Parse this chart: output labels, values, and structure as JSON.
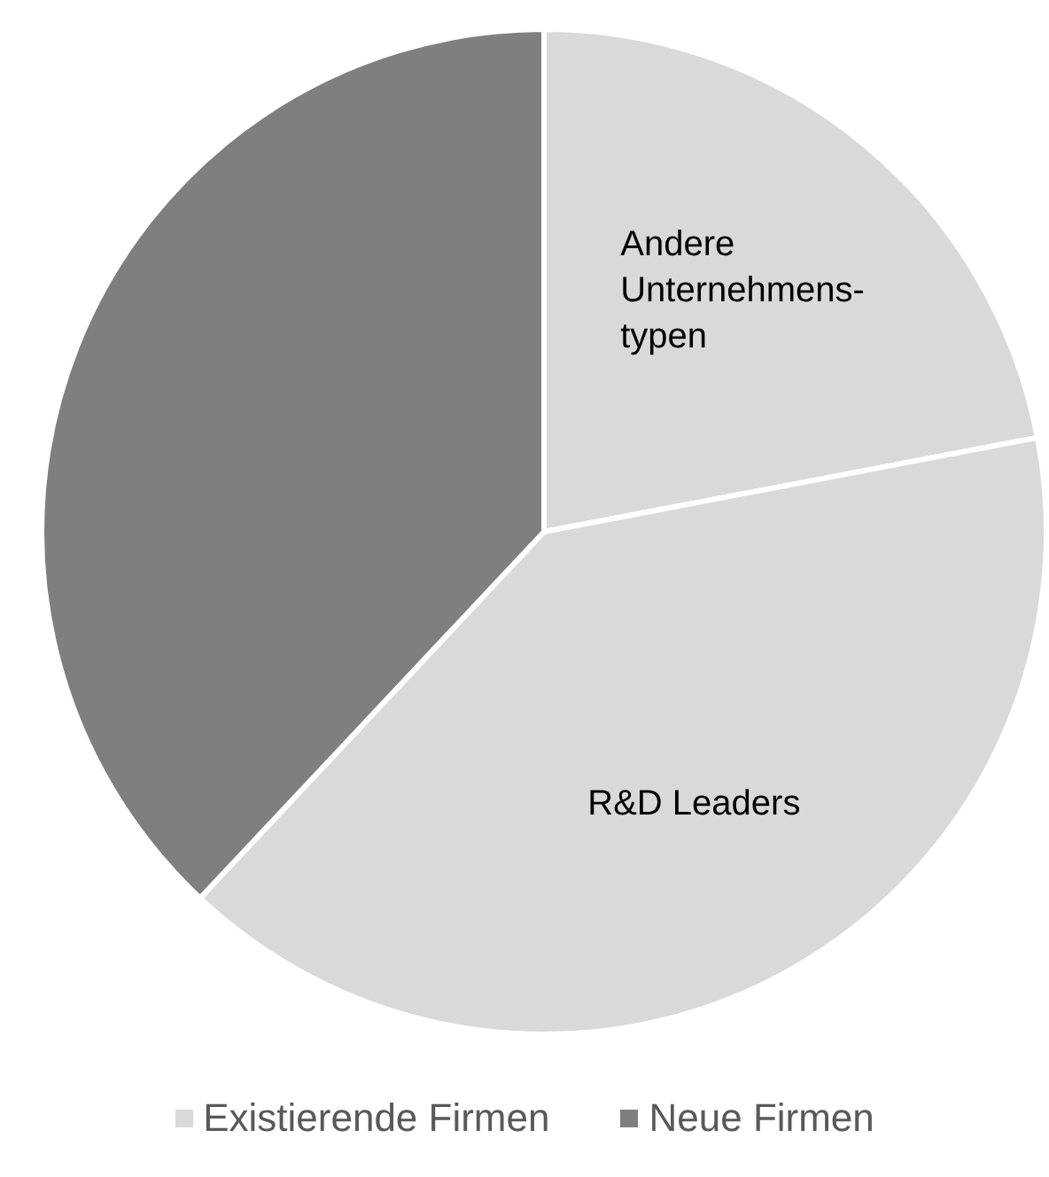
{
  "chart_data": {
    "type": "pie",
    "categories": [
      "Andere Unternehmens-typen",
      "R&D Leaders",
      null
    ],
    "values": [
      22,
      40,
      38
    ],
    "colors": [
      "#d9d9d9",
      "#d9d9d9",
      "#7f7f7f"
    ],
    "annotations": [
      "Existierende Firmen",
      "Neue Firmen"
    ]
  }
}
